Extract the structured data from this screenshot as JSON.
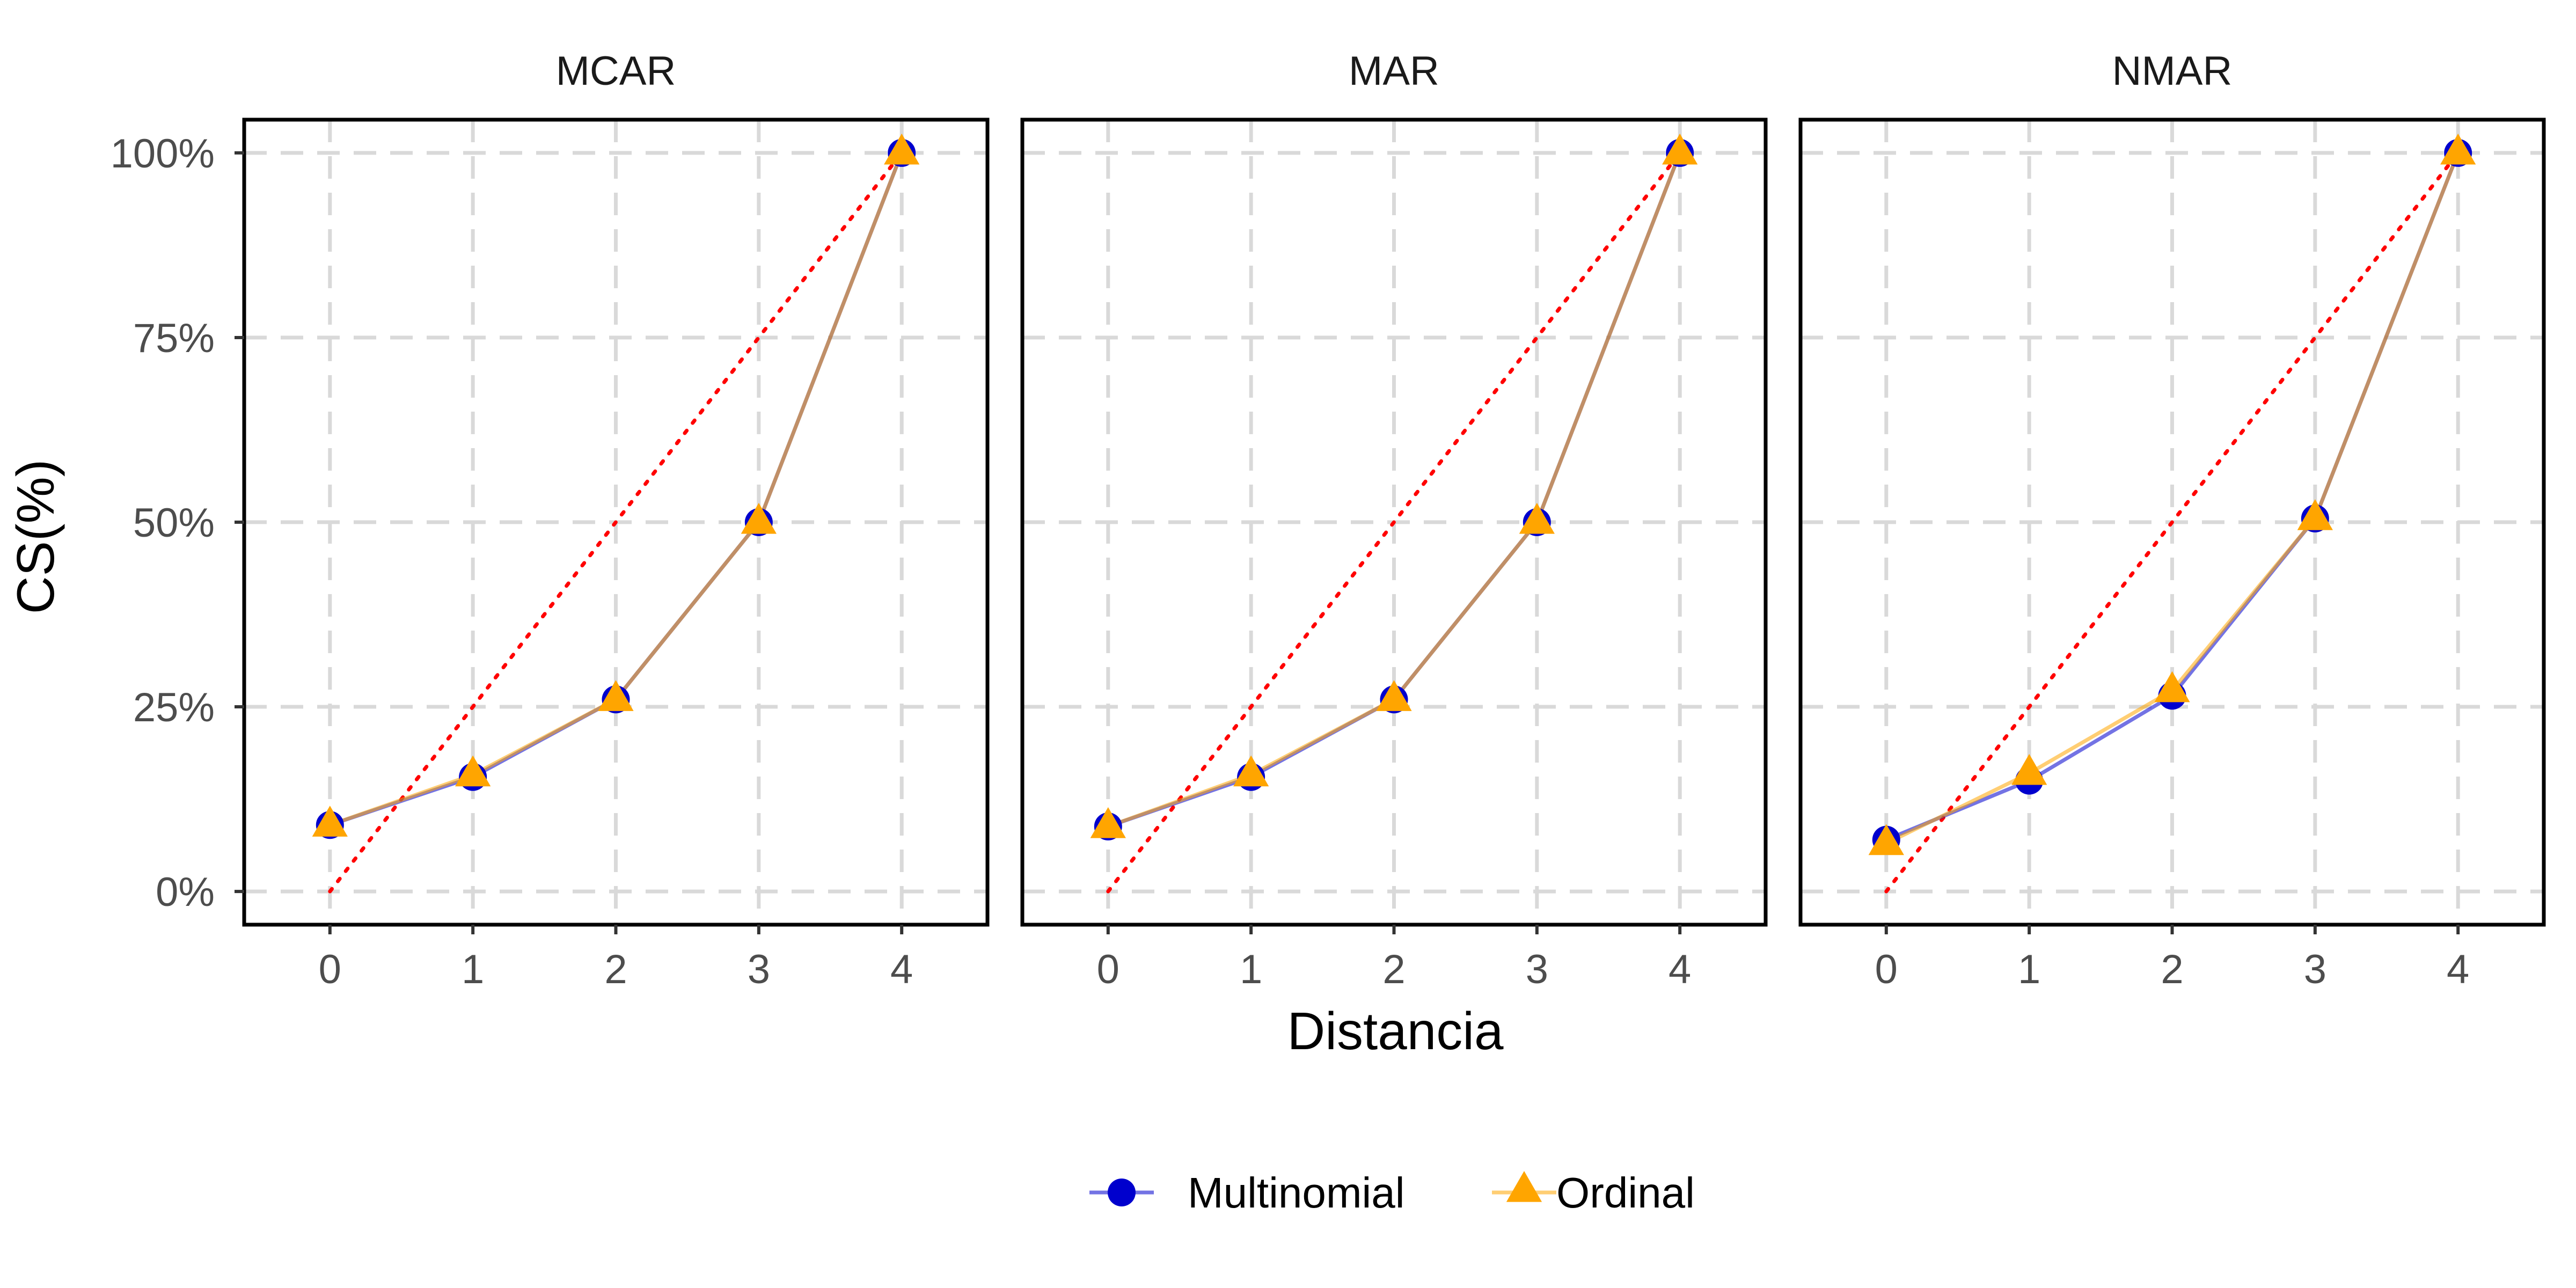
{
  "chart_data": {
    "type": "line",
    "ylabel": "CS(%)",
    "xlabel": "Distancia",
    "x": [
      0,
      1,
      2,
      3,
      4
    ],
    "xlim": [
      -0.6,
      4.6
    ],
    "ylim": [
      -0.045,
      1.045
    ],
    "xticks": [
      "0",
      "1",
      "2",
      "3",
      "4"
    ],
    "yticks": [
      {
        "value": 0,
        "label": "0%"
      },
      {
        "value": 0.25,
        "label": "25%"
      },
      {
        "value": 0.5,
        "label": "50%"
      },
      {
        "value": 0.75,
        "label": "75%"
      },
      {
        "value": 1,
        "label": "100%"
      }
    ],
    "grid": true,
    "legend_position": "bottom",
    "reference_line": {
      "x": [
        0,
        4
      ],
      "y": [
        0,
        1
      ],
      "color": "#ff0000",
      "style": "dotted"
    },
    "series_meta": [
      {
        "name": "Multinomial",
        "color": "#0000cd",
        "marker": "circle"
      },
      {
        "name": "Ordinal",
        "color": "#ffa500",
        "marker": "triangle"
      }
    ],
    "panels": [
      {
        "title": "MCAR",
        "series": [
          {
            "name": "Multinomial",
            "values": [
              0.09,
              0.155,
              0.26,
              0.5,
              1.0
            ]
          },
          {
            "name": "Ordinal",
            "values": [
              0.09,
              0.158,
              0.26,
              0.5,
              1.0
            ]
          }
        ]
      },
      {
        "title": "MAR",
        "series": [
          {
            "name": "Multinomial",
            "values": [
              0.088,
              0.155,
              0.26,
              0.5,
              1.0
            ]
          },
          {
            "name": "Ordinal",
            "values": [
              0.088,
              0.158,
              0.26,
              0.5,
              1.0
            ]
          }
        ]
      },
      {
        "title": "NMAR",
        "series": [
          {
            "name": "Multinomial",
            "values": [
              0.07,
              0.15,
              0.265,
              0.505,
              1.0
            ]
          },
          {
            "name": "Ordinal",
            "values": [
              0.065,
              0.16,
              0.272,
              0.505,
              1.0
            ]
          }
        ]
      }
    ]
  }
}
